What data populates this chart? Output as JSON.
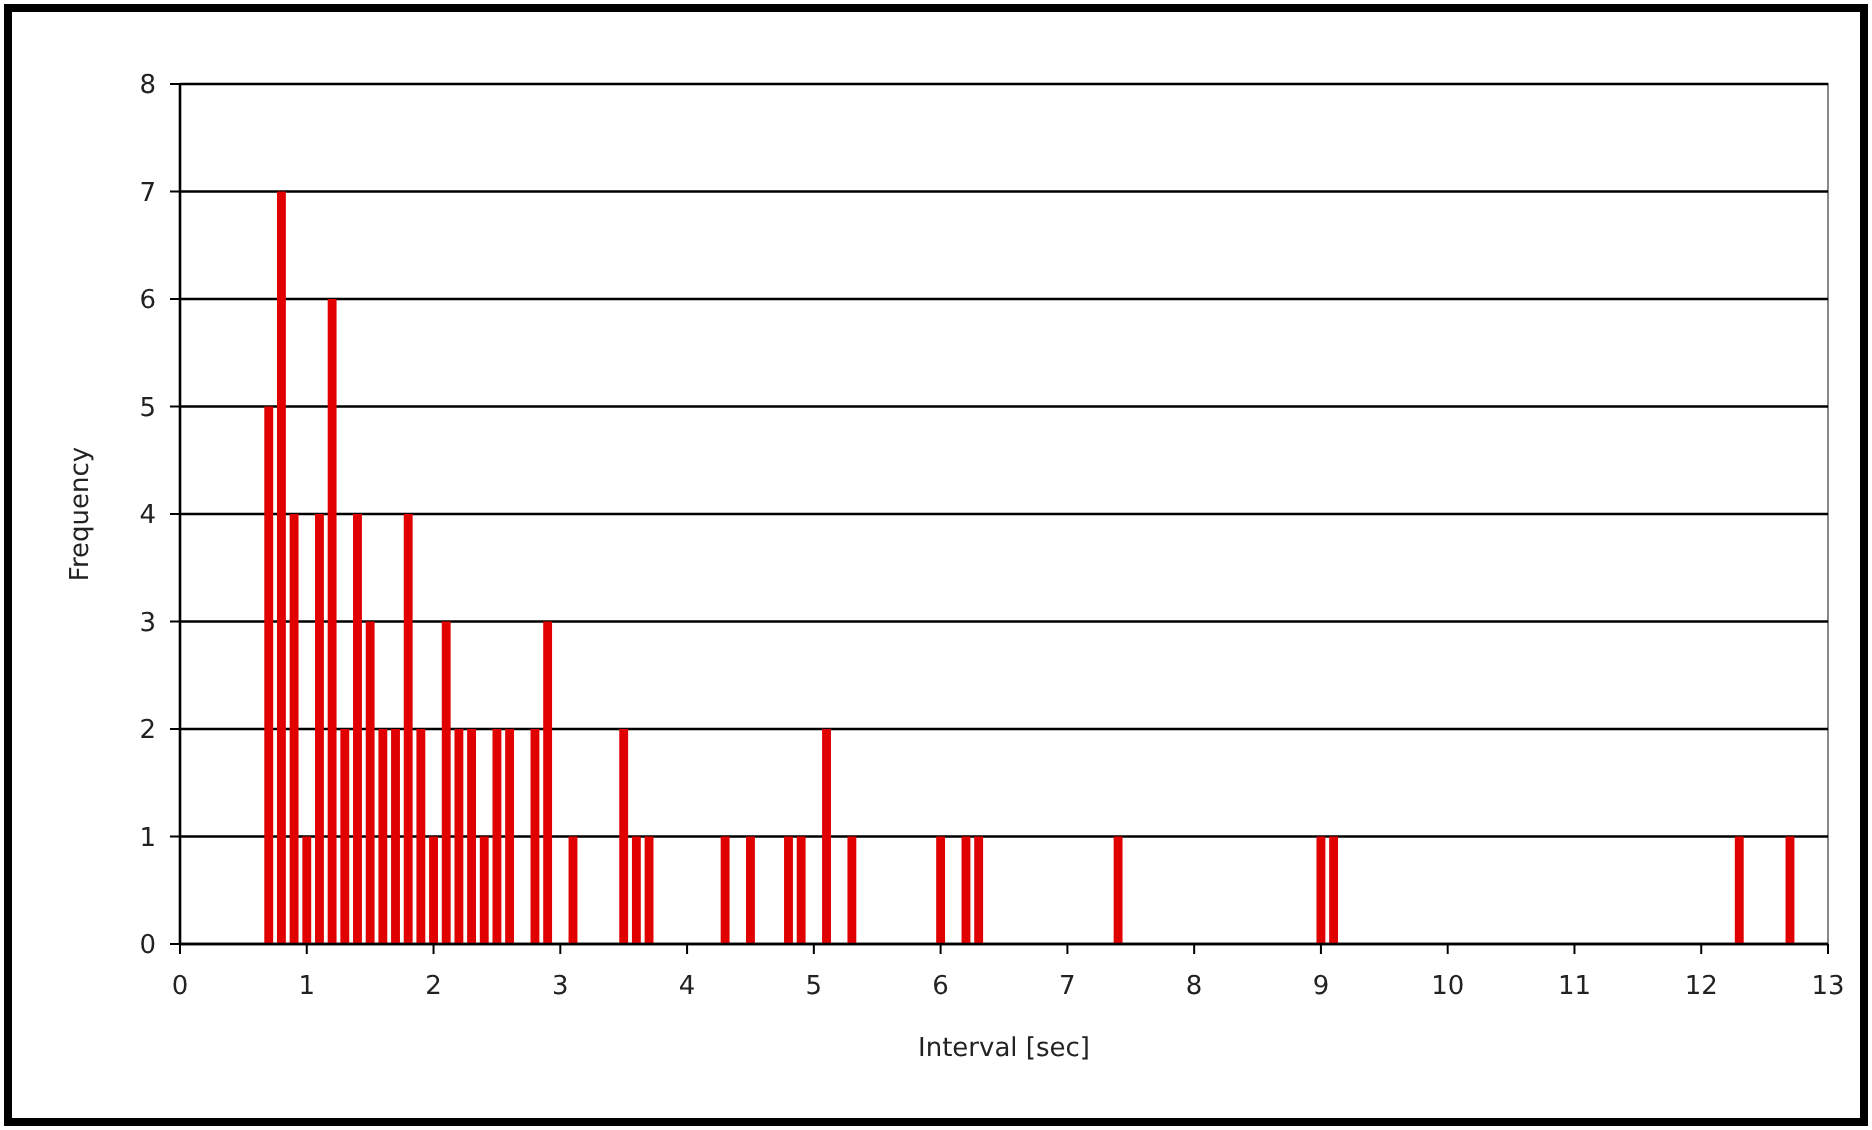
{
  "chart_data": {
    "type": "bar",
    "xlabel": "Interval [sec]",
    "ylabel": "Frequency",
    "x": [
      0.7,
      0.8,
      0.9,
      1.0,
      1.1,
      1.2,
      1.3,
      1.4,
      1.5,
      1.6,
      1.7,
      1.8,
      1.9,
      2.0,
      2.1,
      2.2,
      2.3,
      2.4,
      2.5,
      2.6,
      2.8,
      2.9,
      3.1,
      3.5,
      3.6,
      3.7,
      4.3,
      4.5,
      4.8,
      4.9,
      5.1,
      5.3,
      6.0,
      6.2,
      6.3,
      7.4,
      9.0,
      9.1,
      12.3,
      12.7
    ],
    "values": [
      5,
      7,
      4,
      1,
      4,
      6,
      2,
      4,
      3,
      2,
      2,
      4,
      2,
      1,
      3,
      2,
      2,
      1,
      2,
      2,
      2,
      3,
      1,
      2,
      1,
      1,
      1,
      1,
      1,
      1,
      2,
      1,
      1,
      1,
      1,
      1,
      1,
      1,
      1,
      1
    ],
    "color": "#e00000",
    "xlim": [
      0,
      13
    ],
    "xticks": [
      0,
      1,
      2,
      3,
      4,
      5,
      6,
      7,
      8,
      9,
      10,
      11,
      12,
      13
    ],
    "ylim": [
      0,
      8
    ],
    "yticks": [
      0,
      1,
      2,
      3,
      4,
      5,
      6,
      7,
      8
    ],
    "grid": "y"
  }
}
